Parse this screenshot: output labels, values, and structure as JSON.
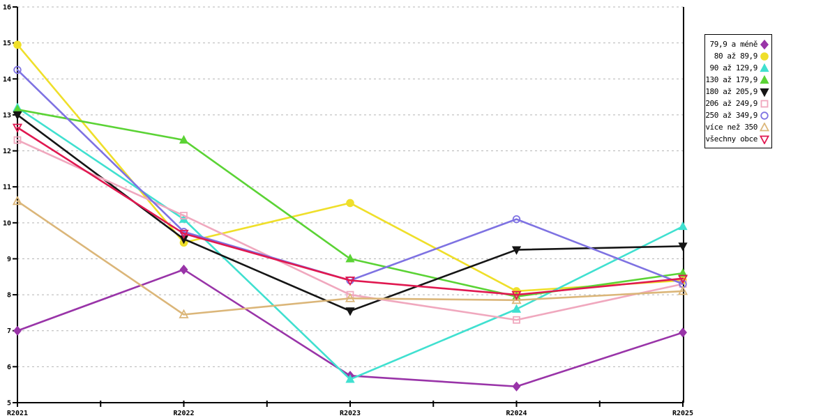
{
  "chart_data": {
    "type": "line",
    "title": "",
    "xlabel": "",
    "ylabel": "",
    "categories": [
      "R2021",
      "R2022",
      "R2023",
      "R2024",
      "R2025"
    ],
    "ylim": [
      5,
      16
    ],
    "yticks": [
      "16",
      "15",
      "14",
      "13",
      "12",
      "11",
      "10",
      "9",
      "8",
      "7",
      "6",
      "5"
    ],
    "grid": "horizontal-dashed",
    "grid_color": "#b4b4b4",
    "axis_color": "#000000",
    "legend_position": "outside-right-box",
    "series": [
      {
        "name": "79,9 a méně",
        "color": "#9934a8",
        "marker": "diamond",
        "filled": true,
        "values": [
          7.0,
          8.7,
          5.75,
          5.45,
          6.95
        ]
      },
      {
        "name": "80 až 89,9",
        "color": "#efdf2a",
        "marker": "circle",
        "filled": true,
        "values": [
          14.95,
          9.45,
          10.55,
          8.1,
          8.4
        ]
      },
      {
        "name": "90 až 129,9",
        "color": "#40e0d0",
        "marker": "triangle-up",
        "filled": true,
        "values": [
          13.2,
          10.1,
          5.65,
          7.6,
          9.9
        ]
      },
      {
        "name": "130 až 179,9",
        "color": "#5bd335",
        "marker": "triangle-up",
        "filled": true,
        "values": [
          13.15,
          12.3,
          9.0,
          7.95,
          8.6
        ]
      },
      {
        "name": "180 až 205,9",
        "color": "#151515",
        "marker": "triangle-down",
        "filled": true,
        "values": [
          13.0,
          9.55,
          7.55,
          9.25,
          9.35
        ]
      },
      {
        "name": "206 až 249,9",
        "color": "#f0a8be",
        "marker": "square",
        "filled": false,
        "values": [
          12.3,
          10.2,
          8.0,
          7.3,
          8.3
        ]
      },
      {
        "name": "250 až 349,9",
        "color": "#7e72e2",
        "marker": "circle",
        "filled": false,
        "values": [
          14.25,
          9.75,
          8.4,
          10.1,
          8.3
        ]
      },
      {
        "name": "více než 350",
        "color": "#dbb679",
        "marker": "triangle-up",
        "filled": false,
        "values": [
          10.6,
          7.45,
          7.9,
          7.85,
          8.1
        ]
      },
      {
        "name": "všechny obce",
        "color": "#e01850",
        "marker": "triangle-down",
        "filled": false,
        "values": [
          12.65,
          9.7,
          8.4,
          8.0,
          8.45
        ]
      }
    ]
  }
}
